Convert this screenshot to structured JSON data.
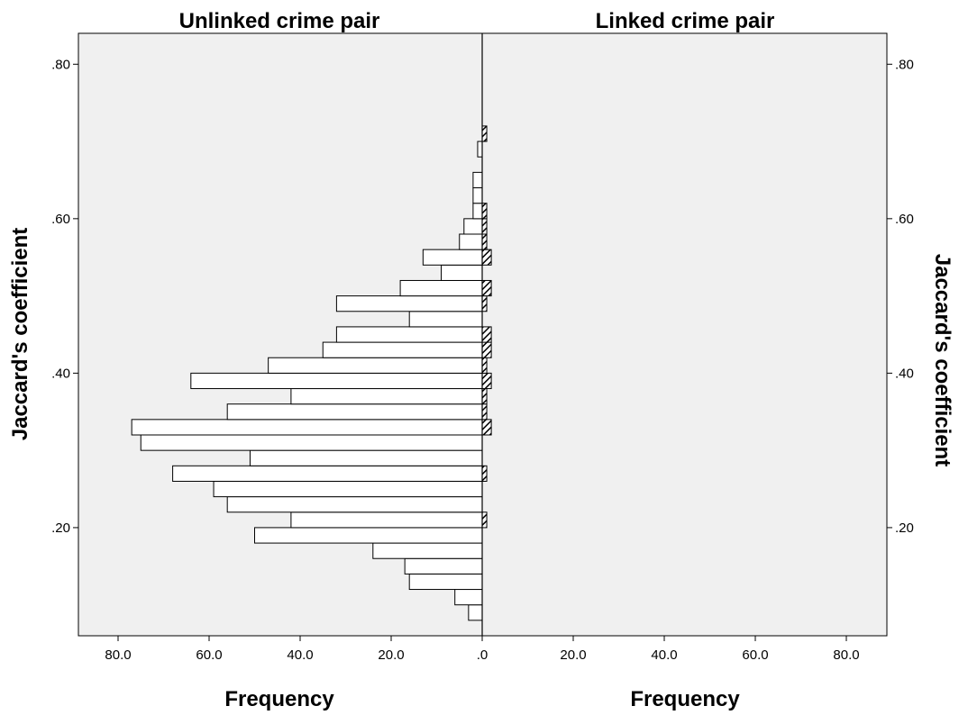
{
  "chart_data": {
    "type": "bar",
    "orientation": "horizontal",
    "layout": "back-to-back population pyramid",
    "panels": [
      {
        "name": "Unlinked crime pair",
        "side": "left"
      },
      {
        "name": "Linked crime pair",
        "side": "right"
      }
    ],
    "y_label_left": "Jaccard's coefficient",
    "y_label_right": "Jaccard's coefficient",
    "x_label_left": "Frequency",
    "x_label_right": "Frequency",
    "x_ticks_left": [
      "80.0",
      "60.0",
      "40.0",
      "20.0",
      ".0"
    ],
    "x_ticks_right": [
      "20.0",
      "40.0",
      "60.0",
      "80.0"
    ],
    "y_ticks": [
      ".20",
      ".40",
      ".60",
      ".80"
    ],
    "y_tick_values": [
      0.2,
      0.4,
      0.6,
      0.8
    ],
    "x_tick_values": [
      0,
      20,
      40,
      60,
      80
    ],
    "xlim": [
      0,
      88
    ],
    "ylim": [
      0.06,
      0.84
    ],
    "bin_width": 0.02,
    "background_color": "#f0f0f0",
    "bar_fill": "#ffffff",
    "bar_edge": "#000000",
    "series": [
      {
        "name": "Unlinked crime pair",
        "side": "left",
        "bins": [
          {
            "y": 0.09,
            "count": 3
          },
          {
            "y": 0.11,
            "count": 6
          },
          {
            "y": 0.13,
            "count": 16
          },
          {
            "y": 0.15,
            "count": 17
          },
          {
            "y": 0.17,
            "count": 24
          },
          {
            "y": 0.19,
            "count": 50
          },
          {
            "y": 0.21,
            "count": 42
          },
          {
            "y": 0.23,
            "count": 56
          },
          {
            "y": 0.25,
            "count": 59
          },
          {
            "y": 0.27,
            "count": 68
          },
          {
            "y": 0.29,
            "count": 51
          },
          {
            "y": 0.31,
            "count": 75
          },
          {
            "y": 0.33,
            "count": 77
          },
          {
            "y": 0.35,
            "count": 56
          },
          {
            "y": 0.37,
            "count": 42
          },
          {
            "y": 0.39,
            "count": 64
          },
          {
            "y": 0.41,
            "count": 47
          },
          {
            "y": 0.43,
            "count": 35
          },
          {
            "y": 0.45,
            "count": 32
          },
          {
            "y": 0.47,
            "count": 16
          },
          {
            "y": 0.49,
            "count": 32
          },
          {
            "y": 0.51,
            "count": 18
          },
          {
            "y": 0.53,
            "count": 9
          },
          {
            "y": 0.55,
            "count": 13
          },
          {
            "y": 0.57,
            "count": 5
          },
          {
            "y": 0.59,
            "count": 4
          },
          {
            "y": 0.61,
            "count": 2
          },
          {
            "y": 0.63,
            "count": 2
          },
          {
            "y": 0.65,
            "count": 2
          },
          {
            "y": 0.69,
            "count": 1
          }
        ]
      },
      {
        "name": "Linked crime pair",
        "side": "right",
        "bins": [
          {
            "y": 0.21,
            "count": 1
          },
          {
            "y": 0.27,
            "count": 1
          },
          {
            "y": 0.33,
            "count": 2
          },
          {
            "y": 0.35,
            "count": 1
          },
          {
            "y": 0.37,
            "count": 1
          },
          {
            "y": 0.39,
            "count": 2
          },
          {
            "y": 0.41,
            "count": 1
          },
          {
            "y": 0.43,
            "count": 2
          },
          {
            "y": 0.45,
            "count": 2
          },
          {
            "y": 0.49,
            "count": 1
          },
          {
            "y": 0.51,
            "count": 2
          },
          {
            "y": 0.55,
            "count": 2
          },
          {
            "y": 0.57,
            "count": 1
          },
          {
            "y": 0.59,
            "count": 1
          },
          {
            "y": 0.61,
            "count": 1
          },
          {
            "y": 0.71,
            "count": 1
          }
        ]
      }
    ]
  }
}
